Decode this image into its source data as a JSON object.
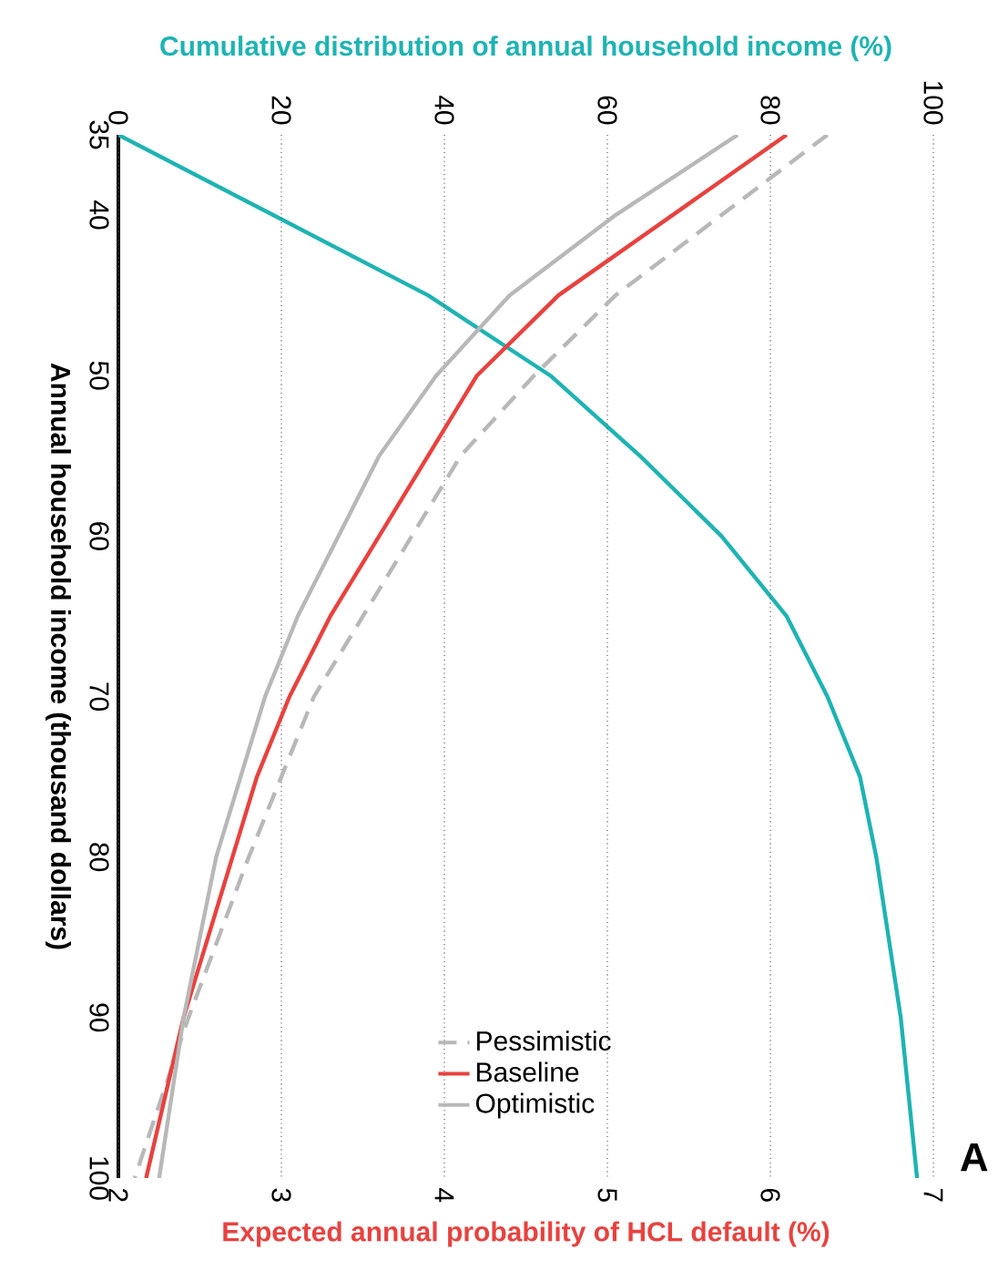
{
  "chart_data": {
    "type": "line",
    "xlabel": "Expected annual probability of HCL default (%)",
    "x2label": "Cumulative distribution of annual household income (%)",
    "ylabel": "Annual household income (thousand dollars)",
    "annotations": [
      "A"
    ],
    "xlim": [
      2,
      7
    ],
    "xticks": [
      2,
      3,
      4,
      5,
      6,
      7
    ],
    "x2lim": [
      0,
      100
    ],
    "x2ticks": [
      0,
      20,
      40,
      60,
      80,
      100
    ],
    "ylim": [
      100,
      35
    ],
    "yticks": [
      35,
      40,
      50,
      60,
      70,
      80,
      90,
      100
    ],
    "grid": "x",
    "legend": "bottom",
    "line_style": "solid",
    "series": [
      {
        "color": "#1fb3b3",
        "axis": "x2",
        "x": [
          0,
          19,
          38,
          53,
          64,
          74,
          82,
          87,
          91,
          93,
          96,
          98
        ],
        "values": [
          35,
          40,
          45,
          50,
          55,
          60,
          65,
          70,
          75,
          80,
          90,
          100
        ]
      },
      {
        "name": "Pessimistic",
        "color": "#b8b8b8",
        "line_style": "dashed",
        "x": [
          6.35,
          5.7,
          5.05,
          4.55,
          4.1,
          3.8,
          3.5,
          3.2,
          3.0,
          2.8,
          2.43,
          2.1
        ],
        "values": [
          35,
          40,
          45,
          50,
          55,
          60,
          65,
          70,
          75,
          80,
          90,
          100
        ]
      },
      {
        "name": "Baseline",
        "color": "#e8423f",
        "x": [
          6.1,
          5.4,
          4.7,
          4.2,
          3.9,
          3.6,
          3.3,
          3.05,
          2.85,
          2.7,
          2.4,
          2.17
        ],
        "values": [
          35,
          40,
          45,
          50,
          55,
          60,
          65,
          70,
          75,
          80,
          90,
          100
        ]
      },
      {
        "name": "Optimistic",
        "color": "#b8b8b8",
        "x": [
          5.8,
          5.05,
          4.4,
          3.95,
          3.6,
          3.35,
          3.1,
          2.9,
          2.75,
          2.6,
          2.4,
          2.25
        ],
        "values": [
          35,
          40,
          45,
          50,
          55,
          60,
          65,
          70,
          75,
          80,
          90,
          100
        ]
      }
    ]
  }
}
